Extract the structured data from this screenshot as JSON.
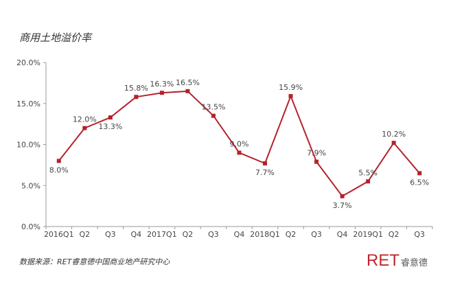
{
  "header": {
    "title": "商用土地溢价率"
  },
  "footer": {
    "source": "数据来源：RET睿意德中国商业地产研究中心",
    "logo_main": "RET",
    "logo_cn": "睿意德"
  },
  "colors": {
    "series": "#b5222b",
    "axis": "#999999",
    "text": "#444444"
  },
  "chart_data": {
    "type": "line",
    "title": "商用土地溢价率",
    "categories": [
      "2016Q1",
      "Q2",
      "Q3",
      "Q4",
      "2017Q1",
      "Q2",
      "Q3",
      "Q4",
      "2018Q1",
      "Q2",
      "Q3",
      "Q4",
      "2019Q1",
      "Q2",
      "Q3"
    ],
    "series": [
      {
        "values": [
          8.0,
          12.0,
          13.3,
          15.8,
          16.3,
          16.5,
          13.5,
          9.0,
          7.7,
          15.9,
          7.9,
          3.7,
          5.5,
          10.2,
          6.5
        ]
      }
    ],
    "data_labels": [
      "8.0%",
      "12.0%",
      "13.3%",
      "15.8%",
      "16.3%",
      "16.5%",
      "13.5%",
      "9.0%",
      "7.7%",
      "15.9%",
      "7.9%",
      "3.7%",
      "5.5%",
      "10.2%",
      "6.5%"
    ],
    "yticks": [
      0,
      5,
      10,
      15,
      20
    ],
    "ytick_labels": [
      "0.0%",
      "5.0%",
      "10.0%",
      "15.0%",
      "20.0%"
    ],
    "ylim": [
      0,
      20
    ],
    "grid": false,
    "legend": "none"
  }
}
